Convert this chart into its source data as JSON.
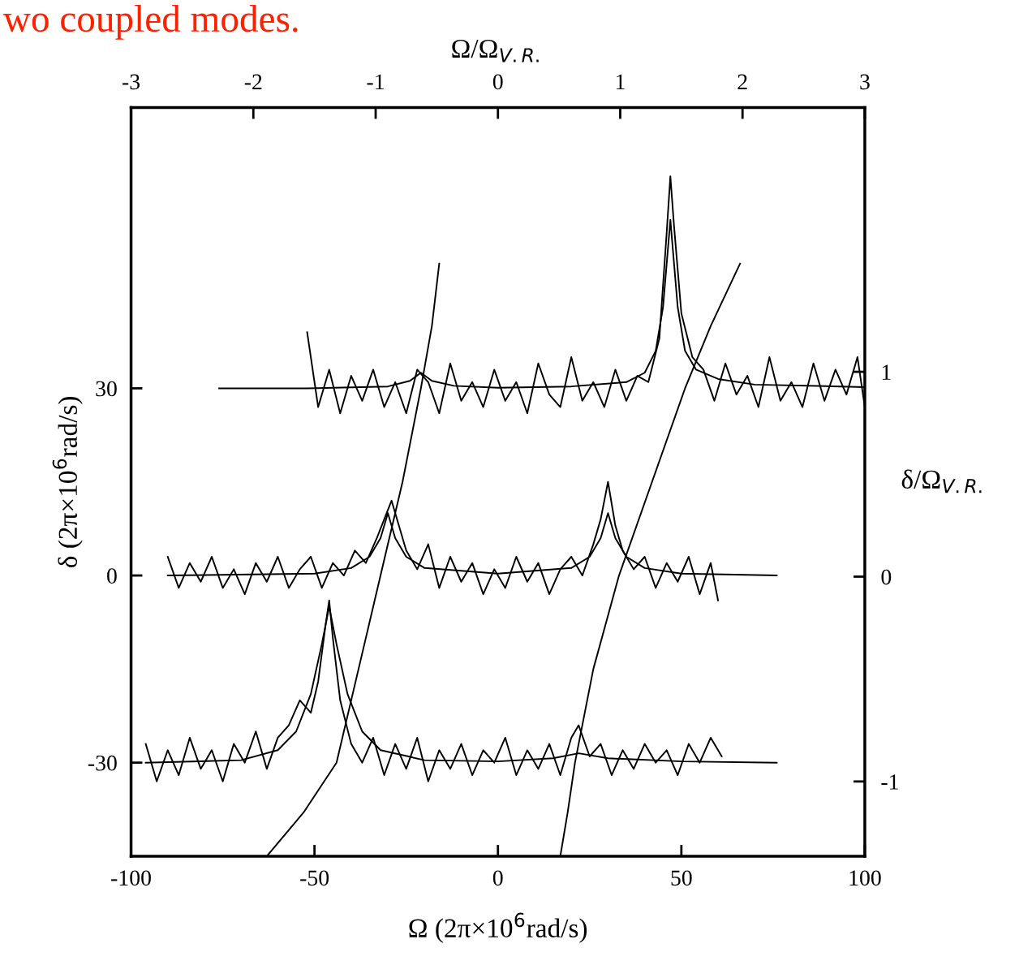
{
  "chart_data": {
    "type": "line",
    "xlabel": "Ω (2π×10$^{6}$rad/s)",
    "ylabel": "δ (2π×10$^{6}$rad/s)",
    "x2label": "Ω/Ω$_{V.R.}$",
    "y2label": "δ/Ω$_{V.R.}$",
    "annotations": [
      "wo coupled modes."
    ],
    "xlim": [
      -100,
      100
    ],
    "xticks": [
      -100,
      -50,
      0,
      50,
      100
    ],
    "ylim": [
      -45,
      75
    ],
    "yticks": [
      -30,
      0,
      30
    ],
    "x2lim": [
      -3,
      3
    ],
    "x2ticks": [
      -3,
      -2,
      -1,
      0,
      1,
      2,
      3
    ],
    "y2lim": [
      -1.365,
      2.29
    ],
    "y2ticks": [
      -1,
      0,
      1
    ],
    "grid": false,
    "marker": "none",
    "line_style": "solid",
    "series": [
      {
        "color": "#000000",
        "x": [
          -52,
          -49,
          -46,
          -43,
          -40,
          -37,
          -34,
          -31,
          -28,
          -25,
          -22,
          -19,
          -16,
          -13,
          -10,
          -7,
          -4,
          -1,
          2,
          5,
          8,
          11,
          14,
          17,
          20,
          23,
          26,
          29,
          32,
          35,
          38,
          41,
          44,
          46,
          47,
          48,
          50,
          53,
          56,
          59,
          62,
          65,
          68,
          71,
          74,
          77,
          80,
          83,
          86,
          89,
          92,
          95,
          98,
          100
        ],
        "values": [
          39,
          27,
          33,
          26,
          32,
          28,
          33,
          27,
          31,
          26,
          33,
          31,
          26,
          34,
          28,
          31,
          27,
          33,
          28,
          31,
          26,
          34,
          29,
          27,
          35,
          28,
          31,
          27,
          33,
          28,
          32,
          31,
          38,
          55,
          64,
          56,
          42,
          35,
          33,
          28,
          34,
          29,
          32,
          27,
          35,
          28,
          31,
          27,
          34,
          28,
          33,
          29,
          35,
          27
        ]
      },
      {
        "color": "#000000",
        "x": [
          -76,
          -52,
          -30,
          -24,
          -21,
          -18,
          -12,
          0,
          20,
          35,
          40,
          43,
          45,
          46,
          47,
          48,
          49,
          51,
          54,
          60,
          70,
          100
        ],
        "values": [
          30,
          30,
          30.3,
          31.2,
          32.5,
          31.2,
          30.4,
          30.1,
          30.3,
          31,
          32.5,
          36,
          43,
          50,
          57,
          50,
          43,
          36,
          33,
          31.5,
          30.6,
          30.2
        ]
      },
      {
        "color": "#000000",
        "x": [
          -90,
          -87,
          -84,
          -81,
          -78,
          -75,
          -72,
          -69,
          -66,
          -63,
          -60,
          -57,
          -54,
          -51,
          -48,
          -45,
          -42,
          -39,
          -36,
          -33,
          -31,
          -29,
          -27,
          -25,
          -22,
          -19,
          -16,
          -13,
          -10,
          -7,
          -4,
          -1,
          2,
          5,
          8,
          11,
          14,
          17,
          20,
          23,
          26,
          28,
          30,
          32,
          34,
          37,
          40,
          43,
          46,
          49,
          52,
          55,
          58,
          60
        ],
        "values": [
          3,
          -2,
          2,
          -1,
          3,
          -2,
          1,
          -3,
          2,
          -1,
          3,
          -2,
          1,
          3,
          -2,
          2,
          0,
          4,
          2,
          6,
          9,
          12,
          8,
          4,
          1,
          5,
          -2,
          3,
          -1,
          2,
          -3,
          1,
          -2,
          3,
          -1,
          2,
          -3,
          1,
          3,
          0,
          5,
          9,
          15,
          8,
          4,
          1,
          3,
          -2,
          2,
          -1,
          3,
          -3,
          2,
          -4
        ]
      },
      {
        "color": "#000000",
        "x": [
          -90,
          -50,
          -40,
          -35,
          -32,
          -30,
          -28,
          -25,
          -20,
          0,
          20,
          25,
          28,
          30,
          32,
          35,
          40,
          50,
          76
        ],
        "values": [
          0,
          0.3,
          1.2,
          3,
          6,
          10,
          6,
          3,
          1.2,
          0.3,
          1.2,
          3,
          6,
          10,
          6,
          3,
          1.2,
          0.3,
          0
        ]
      },
      {
        "color": "#000000",
        "x": [
          -96,
          -93,
          -90,
          -87,
          -84,
          -81,
          -78,
          -75,
          -72,
          -69,
          -66,
          -63,
          -60,
          -57,
          -54,
          -51,
          -49,
          -47,
          -46,
          -45,
          -43,
          -40,
          -37,
          -34,
          -31,
          -28,
          -25,
          -22,
          -19,
          -16,
          -13,
          -10,
          -7,
          -4,
          -1,
          2,
          5,
          8,
          11,
          14,
          17,
          20,
          22,
          25,
          28,
          31,
          34,
          37,
          40,
          43,
          46,
          49,
          52,
          55,
          58,
          61
        ],
        "values": [
          -27,
          -33,
          -28,
          -32,
          -26,
          -31,
          -28,
          -33,
          -27,
          -30,
          -25,
          -31,
          -26,
          -24,
          -20,
          -22,
          -17,
          -8,
          -4,
          -10,
          -20,
          -27,
          -30,
          -26,
          -32,
          -27,
          -31,
          -26,
          -33,
          -28,
          -31,
          -27,
          -32,
          -28,
          -30,
          -26,
          -32,
          -28,
          -31,
          -27,
          -32,
          -26,
          -24,
          -29,
          -27,
          -32,
          -28,
          -31,
          -27,
          -30,
          -28,
          -32,
          -27,
          -30,
          -26,
          -29
        ]
      },
      {
        "color": "#000000",
        "x": [
          -96,
          -70,
          -60,
          -55,
          -51,
          -48,
          -46,
          -44,
          -41,
          -37,
          -32,
          -20,
          0,
          15,
          22,
          30,
          50,
          76
        ],
        "values": [
          -30,
          -29.6,
          -28,
          -25,
          -19,
          -11,
          -5,
          -11,
          -19,
          -25,
          -28,
          -29.6,
          -29.8,
          -29.3,
          -28.5,
          -29.3,
          -29.8,
          -30
        ]
      },
      {
        "color": "#000000",
        "x": [
          -63,
          -53,
          -44,
          -38,
          -32,
          -26,
          -21,
          -18,
          -16
        ],
        "values": [
          -45,
          -38,
          -30,
          -15,
          0,
          15,
          30,
          40,
          50
        ]
      },
      {
        "color": "#000000",
        "x": [
          17,
          19,
          21,
          26,
          33,
          42,
          51,
          58,
          66
        ],
        "values": [
          -45,
          -38,
          -30,
          -15,
          0,
          15,
          30,
          40,
          50
        ]
      }
    ]
  }
}
